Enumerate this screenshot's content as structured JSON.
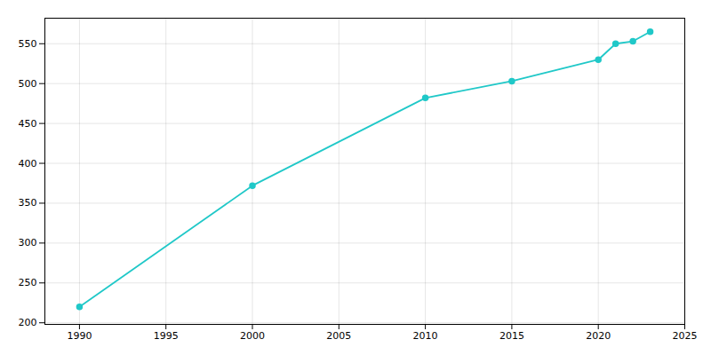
{
  "chart_data": {
    "type": "line",
    "x": [
      1990,
      2000,
      2010,
      2015,
      2020,
      2021,
      2022,
      2023
    ],
    "values": [
      220,
      372,
      482,
      503,
      530,
      550,
      553,
      565
    ],
    "color": "#20C8C8",
    "marker": "circle",
    "xlim": [
      1988,
      2025
    ],
    "ylim": [
      198,
      582
    ],
    "xticks": [
      1990,
      1995,
      2000,
      2005,
      2010,
      2015,
      2020,
      2025
    ],
    "yticks": [
      200,
      250,
      300,
      350,
      400,
      450,
      500,
      550
    ],
    "grid": true
  }
}
